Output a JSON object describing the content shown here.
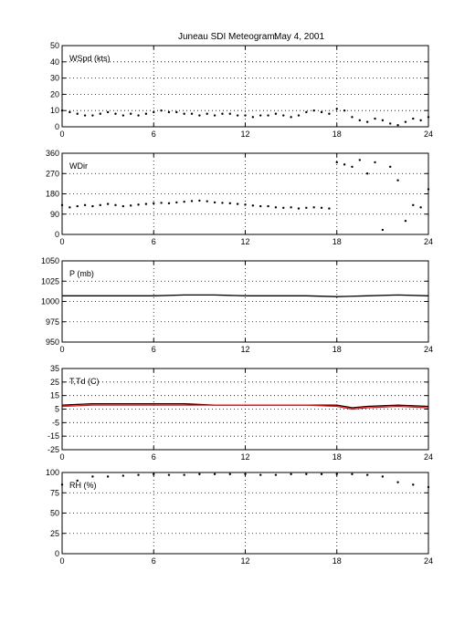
{
  "title": "Juneau SDI Meteogram:",
  "date": "May  4, 2001",
  "chart_data": [
    {
      "type": "scatter",
      "label": "WSpd (kts)",
      "x_ticks": [
        0,
        6,
        12,
        18,
        24
      ],
      "xlim": [
        0,
        24
      ],
      "ylim": [
        0,
        50
      ],
      "y_ticks": [
        0,
        10,
        20,
        30,
        40,
        50
      ],
      "grid": true,
      "series": [
        {
          "color": "#000000",
          "x": [
            0,
            0.5,
            1,
            1.5,
            2,
            2.5,
            3,
            3.5,
            4,
            4.5,
            5,
            5.5,
            6,
            6.5,
            7,
            7.5,
            8,
            8.5,
            9,
            9.5,
            10,
            10.5,
            11,
            11.5,
            12,
            12.5,
            13,
            13.5,
            14,
            14.5,
            15,
            15.5,
            16,
            16.5,
            17,
            17.5,
            18,
            18.5,
            19,
            19.5,
            20,
            20.5,
            21,
            21.5,
            22,
            22.5,
            23,
            23.5,
            24
          ],
          "y": [
            10,
            9,
            8,
            7,
            7,
            8,
            9,
            8,
            7,
            8,
            7,
            8,
            9,
            10,
            9,
            9,
            8,
            8,
            7,
            8,
            7,
            8,
            8,
            7,
            7,
            6,
            7,
            7,
            8,
            7,
            6,
            7,
            9,
            10,
            9,
            8,
            11,
            10,
            6,
            4,
            3,
            5,
            4,
            2,
            1,
            3,
            5,
            4,
            6
          ]
        }
      ]
    },
    {
      "type": "scatter",
      "label": "WDir",
      "x_ticks": [
        0,
        6,
        12,
        18,
        24
      ],
      "xlim": [
        0,
        24
      ],
      "ylim": [
        0,
        360
      ],
      "y_ticks": [
        0,
        90,
        180,
        270,
        360
      ],
      "grid": true,
      "series": [
        {
          "color": "#000000",
          "x": [
            0,
            0.5,
            1,
            1.5,
            2,
            2.5,
            3,
            3.5,
            4,
            4.5,
            5,
            5.5,
            6,
            6.5,
            7,
            7.5,
            8,
            8.5,
            9,
            9.5,
            10,
            10.5,
            11,
            11.5,
            12,
            12.5,
            13,
            13.5,
            14,
            14.5,
            15,
            15.5,
            16,
            16.5,
            17,
            17.5,
            18,
            18.5,
            19,
            19.5,
            20,
            20.5,
            21,
            21.5,
            22,
            22.5,
            23,
            23.5,
            24
          ],
          "y": [
            130,
            120,
            125,
            130,
            125,
            130,
            135,
            130,
            125,
            128,
            132,
            135,
            138,
            140,
            138,
            142,
            145,
            148,
            150,
            147,
            142,
            140,
            138,
            135,
            132,
            128,
            125,
            125,
            120,
            118,
            120,
            115,
            118,
            120,
            118,
            115,
            320,
            310,
            300,
            330,
            270,
            320,
            20,
            300,
            240,
            60,
            130,
            120,
            200
          ]
        }
      ]
    },
    {
      "type": "line",
      "label": "P (mb)",
      "x_ticks": [
        0,
        6,
        12,
        18,
        24
      ],
      "xlim": [
        0,
        24
      ],
      "ylim": [
        950,
        1050
      ],
      "y_ticks": [
        950,
        975,
        1000,
        1025,
        1050
      ],
      "grid": true,
      "series": [
        {
          "color": "#000000",
          "x": [
            0,
            2,
            4,
            6,
            8,
            10,
            12,
            14,
            16,
            18,
            20,
            22,
            24
          ],
          "y": [
            1007,
            1007,
            1007,
            1007,
            1008,
            1008,
            1007,
            1007,
            1007,
            1006,
            1007,
            1008,
            1007
          ]
        }
      ]
    },
    {
      "type": "line",
      "label": "T,Td (C)",
      "x_ticks": [
        0,
        6,
        12,
        18,
        24
      ],
      "xlim": [
        0,
        24
      ],
      "ylim": [
        -25,
        35
      ],
      "y_ticks": [
        -25,
        -15,
        -5,
        5,
        15,
        25,
        35
      ],
      "grid": true,
      "series": [
        {
          "color": "#000000",
          "x": [
            0,
            2,
            4,
            6,
            8,
            10,
            12,
            14,
            16,
            18,
            19,
            20,
            22,
            24
          ],
          "y": [
            8,
            9,
            9,
            9,
            9,
            8,
            8,
            8,
            8,
            8,
            6,
            7,
            8,
            7
          ]
        },
        {
          "color": "#ff0000",
          "x": [
            0,
            2,
            4,
            6,
            8,
            10,
            12,
            14,
            16,
            18,
            19,
            20,
            22,
            24
          ],
          "y": [
            7,
            8,
            8,
            8,
            8,
            8,
            8,
            8,
            8,
            7,
            5,
            6,
            7,
            6
          ]
        }
      ]
    },
    {
      "type": "scatter",
      "label": "RH (%)",
      "x_ticks": [
        0,
        6,
        12,
        18,
        24
      ],
      "xlim": [
        0,
        24
      ],
      "ylim": [
        0,
        100
      ],
      "y_ticks": [
        0,
        25,
        50,
        75,
        100
      ],
      "grid": true,
      "series": [
        {
          "color": "#000000",
          "x": [
            0,
            1,
            2,
            3,
            4,
            5,
            6,
            7,
            8,
            9,
            10,
            11,
            12,
            13,
            14,
            15,
            16,
            17,
            18,
            19,
            20,
            21,
            22,
            23,
            24
          ],
          "y": [
            85,
            90,
            95,
            95,
            96,
            97,
            98,
            97,
            97,
            98,
            98,
            98,
            98,
            97,
            97,
            98,
            98,
            98,
            98,
            98,
            97,
            95,
            88,
            85,
            82
          ]
        }
      ]
    }
  ]
}
